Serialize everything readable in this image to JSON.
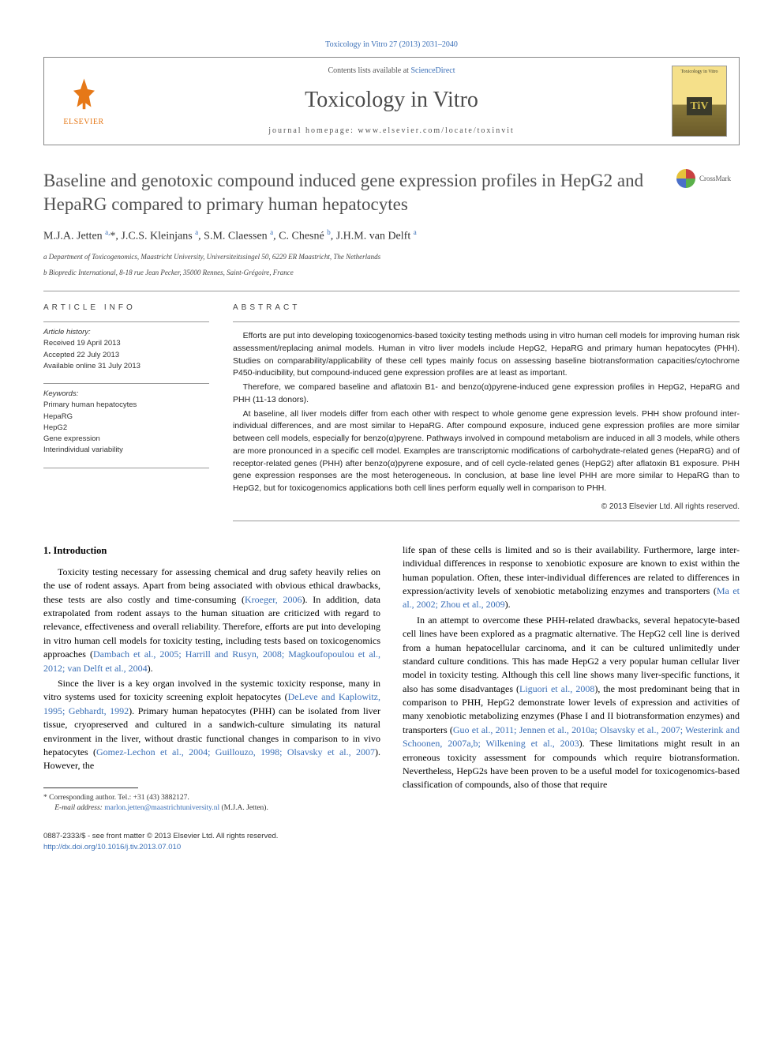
{
  "citation": "Toxicology in Vitro 27 (2013) 2031–2040",
  "header": {
    "contents_prefix": "Contents lists available at ",
    "contents_link": "ScienceDirect",
    "journal": "Toxicology in Vitro",
    "homepage": "journal homepage: www.elsevier.com/locate/toxinvit",
    "publisher": "ELSEVIER",
    "cover_text": "Toxicology in Vitro",
    "cover_logo": "TiV"
  },
  "crossmark": "CrossMark",
  "title": "Baseline and genotoxic compound induced gene expression profiles in HepG2 and HepaRG compared to primary human hepatocytes",
  "authors_html": "M.J.A. Jetten <sup>a,</sup>*, J.C.S. Kleinjans <sup>a</sup>, S.M. Claessen <sup>a</sup>, C. Chesné <sup>b</sup>, J.H.M. van Delft <sup>a</sup>",
  "affiliations": {
    "a": "a Department of Toxicogenomics, Maastricht University, Universiteitssingel 50, 6229 ER Maastricht, The Netherlands",
    "b": "b Biopredic International, 8-18 rue Jean Pecker, 35000 Rennes, Saint-Grégoire, France"
  },
  "article_info": {
    "heading": "ARTICLE INFO",
    "history_label": "Article history:",
    "received": "Received 19 April 2013",
    "accepted": "Accepted 22 July 2013",
    "online": "Available online 31 July 2013",
    "keywords_label": "Keywords:",
    "keywords": [
      "Primary human hepatocytes",
      "HepaRG",
      "HepG2",
      "Gene expression",
      "Interindividual variability"
    ]
  },
  "abstract": {
    "heading": "ABSTRACT",
    "p1": "Efforts are put into developing toxicogenomics-based toxicity testing methods using in vitro human cell models for improving human risk assessment/replacing animal models. Human in vitro liver models include HepG2, HepaRG and primary human hepatocytes (PHH). Studies on comparability/applicability of these cell types mainly focus on assessing baseline biotransformation capacities/cytochrome P450-inducibility, but compound-induced gene expression profiles are at least as important.",
    "p2": "Therefore, we compared baseline and aflatoxin B1- and benzo(α)pyrene-induced gene expression profiles in HepG2, HepaRG and PHH (11-13 donors).",
    "p3": "At baseline, all liver models differ from each other with respect to whole genome gene expression levels. PHH show profound inter-individual differences, and are most similar to HepaRG. After compound exposure, induced gene expression profiles are more similar between cell models, especially for benzo(α)pyrene. Pathways involved in compound metabolism are induced in all 3 models, while others are more pronounced in a specific cell model. Examples are transcriptomic modifications of carbohydrate-related genes (HepaRG) and of receptor-related genes (PHH) after benzo(α)pyrene exposure, and of cell cycle-related genes (HepG2) after aflatoxin B1 exposure. PHH gene expression responses are the most heterogeneous. In conclusion, at base line level PHH are more similar to HepaRG than to HepG2, but for toxicogenomics applications both cell lines perform equally well in comparison to PHH.",
    "copyright": "© 2013 Elsevier Ltd. All rights reserved."
  },
  "body": {
    "heading": "1. Introduction",
    "col1_p1": "Toxicity testing necessary for assessing chemical and drug safety heavily relies on the use of rodent assays. Apart from being associated with obvious ethical drawbacks, these tests are also costly and time-consuming (",
    "col1_p1_ref1": "Kroeger, 2006",
    "col1_p1b": "). In addition, data extrapolated from rodent assays to the human situation are criticized with regard to relevance, effectiveness and overall reliability. Therefore, efforts are put into developing in vitro human cell models for toxicity testing, including tests based on toxicogenomics approaches (",
    "col1_p1_ref2": "Dambach et al., 2005; Harrill and Rusyn, 2008; Magkoufopoulou et al., 2012; van Delft et al., 2004",
    "col1_p1c": ").",
    "col1_p2a": "Since the liver is a key organ involved in the systemic toxicity response, many in vitro systems used for toxicity screening exploit hepatocytes (",
    "col1_p2_ref1": "DeLeve and Kaplowitz, 1995; Gebhardt, 1992",
    "col1_p2b": "). Primary human hepatocytes (PHH) can be isolated from liver tissue, cryopreserved and cultured in a sandwich-culture simulating its natural environment in the liver, without drastic functional changes in comparison to in vivo hepatocytes (",
    "col1_p2_ref2": "Gomez-Lechon et al., 2004; Guillouzo, 1998; Olsavsky et al., 2007",
    "col1_p2c": "). However, the",
    "col2_p1a": "life span of these cells is limited and so is their availability. Furthermore, large inter-individual differences in response to xenobiotic exposure are known to exist within the human population. Often, these inter-individual differences are related to differences in expression/activity levels of xenobiotic metabolizing enzymes and transporters (",
    "col2_p1_ref1": "Ma et al., 2002; Zhou et al., 2009",
    "col2_p1b": ").",
    "col2_p2a": "In an attempt to overcome these PHH-related drawbacks, several hepatocyte-based cell lines have been explored as a pragmatic alternative. The HepG2 cell line is derived from a human hepatocellular carcinoma, and it can be cultured unlimitedly under standard culture conditions. This has made HepG2 a very popular human cellular liver model in toxicity testing. Although this cell line shows many liver-specific functions, it also has some disadvantages (",
    "col2_p2_ref1": "Liguori et al., 2008",
    "col2_p2b": "), the most predominant being that in comparison to PHH, HepG2 demonstrate lower levels of expression and activities of many xenobiotic metabolizing enzymes (Phase I and II biotransformation enzymes) and transporters (",
    "col2_p2_ref2": "Guo et al., 2011; Jennen et al., 2010a; Olsavsky et al., 2007; Westerink and Schoonen, 2007a,b; Wilkening et al., 2003",
    "col2_p2c": "). These limitations might result in an erroneous toxicity assessment for compounds which require biotransformation. Nevertheless, HepG2s have been proven to be a useful model for toxicogenomics-based classification of compounds, also of those that require"
  },
  "footnote": {
    "corresponding": "* Corresponding author. Tel.: +31 (43) 3882127.",
    "email_label": "E-mail address: ",
    "email": "marlon.jetten@maastrichtuniversity.nl",
    "email_suffix": " (M.J.A. Jetten)."
  },
  "footer": {
    "issn": "0887-2333/$ - see front matter © 2013 Elsevier Ltd. All rights reserved.",
    "doi": "http://dx.doi.org/10.1016/j.tiv.2013.07.010"
  },
  "colors": {
    "link": "#3a6fb7",
    "elsevier_orange": "#e67817",
    "text_gray": "#505050"
  }
}
